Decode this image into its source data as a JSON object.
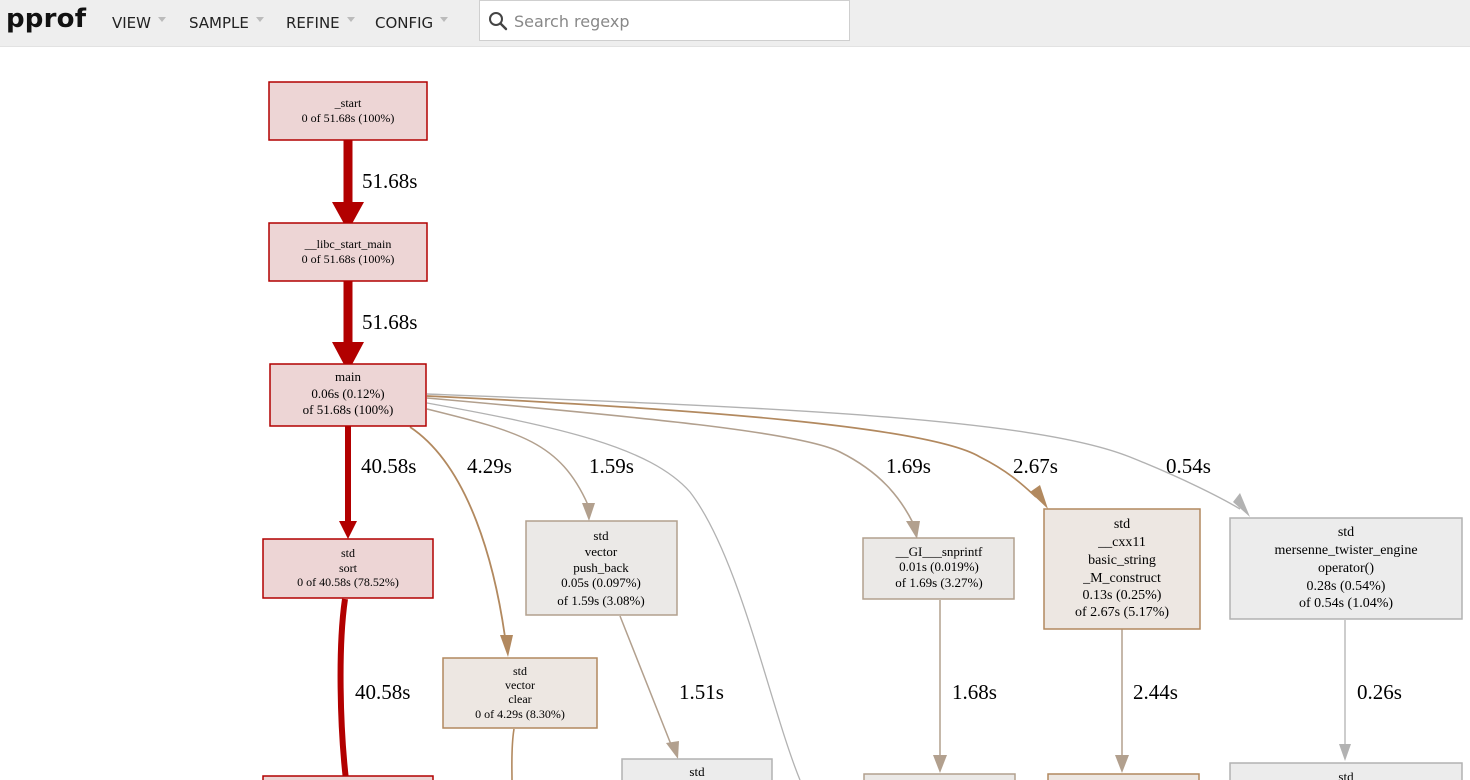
{
  "app": {
    "title": "pprof"
  },
  "menu": [
    {
      "label": "VIEW"
    },
    {
      "label": "SAMPLE"
    },
    {
      "label": "REFINE"
    },
    {
      "label": "CONFIG"
    }
  ],
  "search": {
    "placeholder": "Search regexp",
    "value": ""
  },
  "colors": {
    "hot_fill": "#edd5d5",
    "hot_stroke": "#b20000",
    "warm_fill": "#ede7e2",
    "warm_stroke": "#b2895f",
    "cold_fill": "#ececec",
    "cold_stroke": "#b2b2b2"
  },
  "graph": {
    "nodes": [
      {
        "id": "start",
        "lines": [
          "_start",
          "0 of 51.68s (100%)"
        ],
        "heat": "hot",
        "size": "small"
      },
      {
        "id": "libc",
        "lines": [
          "__libc_start_main",
          "0 of 51.68s (100%)"
        ],
        "heat": "hot",
        "size": "small"
      },
      {
        "id": "main",
        "lines": [
          "main",
          "0.06s (0.12%)",
          "of 51.68s (100%)"
        ],
        "heat": "hot",
        "size": "medium"
      },
      {
        "id": "sort",
        "lines": [
          "std",
          "sort",
          "0 of 40.58s (78.52%)"
        ],
        "heat": "hot",
        "size": "small"
      },
      {
        "id": "push",
        "lines": [
          "std",
          "vector",
          "push_back",
          "0.05s (0.097%)",
          "of 1.59s (3.08%)"
        ],
        "heat": "warm",
        "size": "medium"
      },
      {
        "id": "clear",
        "lines": [
          "std",
          "vector",
          "clear",
          "0 of 4.29s (8.30%)"
        ],
        "heat": "warm",
        "size": "small"
      },
      {
        "id": "snprintf",
        "lines": [
          "__GI___snprintf",
          "0.01s (0.019%)",
          "of 1.69s (3.27%)"
        ],
        "heat": "warm",
        "size": "medium"
      },
      {
        "id": "construct",
        "lines": [
          "std",
          "__cxx11",
          "basic_string",
          "_M_construct",
          "0.13s (0.25%)",
          "of 2.67s (5.17%)"
        ],
        "heat": "warm",
        "size": "large"
      },
      {
        "id": "mt",
        "lines": [
          "std",
          "mersenne_twister_engine",
          "operator()",
          "0.28s (0.54%)",
          "of 0.54s (1.04%)"
        ],
        "heat": "cold",
        "size": "large"
      },
      {
        "id": "push_child",
        "lines": [
          "std"
        ],
        "heat": "cold",
        "size": "medium"
      },
      {
        "id": "mt_child",
        "lines": [
          "std"
        ],
        "heat": "cold",
        "size": "medium"
      }
    ],
    "edges": [
      {
        "from": "start",
        "to": "libc",
        "label": "51.68s",
        "heat": "hot",
        "weight": 51.68
      },
      {
        "from": "libc",
        "to": "main",
        "label": "51.68s",
        "heat": "hot",
        "weight": 51.68
      },
      {
        "from": "main",
        "to": "sort",
        "label": "40.58s",
        "heat": "hot",
        "weight": 40.58
      },
      {
        "from": "main",
        "to": "clear",
        "label": "4.29s",
        "heat": "warm",
        "weight": 4.29
      },
      {
        "from": "main",
        "to": "push",
        "label": "1.59s",
        "heat": "warm",
        "weight": 1.59
      },
      {
        "from": "main",
        "to": "offscreen",
        "label": "",
        "heat": "cold",
        "weight": 0.3
      },
      {
        "from": "main",
        "to": "snprintf",
        "label": "1.69s",
        "heat": "warm",
        "weight": 1.69
      },
      {
        "from": "main",
        "to": "construct",
        "label": "2.67s",
        "heat": "warm",
        "weight": 2.67
      },
      {
        "from": "main",
        "to": "mt",
        "label": "0.54s",
        "heat": "cold",
        "weight": 0.54
      },
      {
        "from": "sort",
        "to": "sort_child",
        "label": "40.58s",
        "heat": "hot",
        "weight": 40.58
      },
      {
        "from": "push",
        "to": "push_child",
        "label": "1.51s",
        "heat": "warm",
        "weight": 1.51
      },
      {
        "from": "snprintf",
        "to": "snprintf_child",
        "label": "1.68s",
        "heat": "warm",
        "weight": 1.68
      },
      {
        "from": "construct",
        "to": "construct_child",
        "label": "2.44s",
        "heat": "warm",
        "weight": 2.44
      },
      {
        "from": "mt",
        "to": "mt_child",
        "label": "0.26s",
        "heat": "cold",
        "weight": 0.26
      }
    ]
  }
}
